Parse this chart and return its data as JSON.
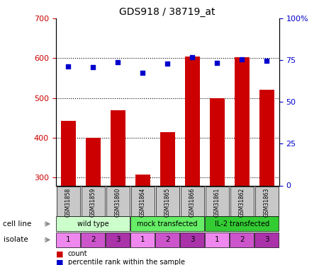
{
  "title": "GDS918 / 38719_at",
  "samples": [
    "GSM31858",
    "GSM31859",
    "GSM31860",
    "GSM31864",
    "GSM31865",
    "GSM31866",
    "GSM31861",
    "GSM31862",
    "GSM31863"
  ],
  "counts": [
    443,
    400,
    470,
    307,
    415,
    605,
    500,
    603,
    520
  ],
  "percentile_ranks": [
    71.5,
    71.0,
    74.0,
    67.5,
    73.0,
    77.0,
    73.5,
    75.5,
    74.5
  ],
  "cell_lines": [
    {
      "label": "wild type",
      "span": [
        0,
        3
      ],
      "color": "#ccffcc"
    },
    {
      "label": "mock transfected",
      "span": [
        3,
        6
      ],
      "color": "#66ee66"
    },
    {
      "label": "IL-2 transfected",
      "span": [
        6,
        9
      ],
      "color": "#33cc33"
    }
  ],
  "isolates": [
    "1",
    "2",
    "3",
    "1",
    "2",
    "3",
    "1",
    "2",
    "3"
  ],
  "isolate_color_map": [
    "#ee88ee",
    "#cc55cc",
    "#aa33aa"
  ],
  "ylim_left": [
    280,
    700
  ],
  "ylim_right": [
    0,
    100
  ],
  "yticks_left": [
    300,
    400,
    500,
    600,
    700
  ],
  "yticks_right": [
    0,
    25,
    50,
    75,
    100
  ],
  "bar_color": "#cc0000",
  "dot_color": "#0000cc",
  "grid_ticks": [
    300,
    400,
    500,
    600
  ],
  "gsm_bg_color": "#c8c8c8",
  "left_tick_color": "#cc0000",
  "right_tick_color": "#0000cc"
}
